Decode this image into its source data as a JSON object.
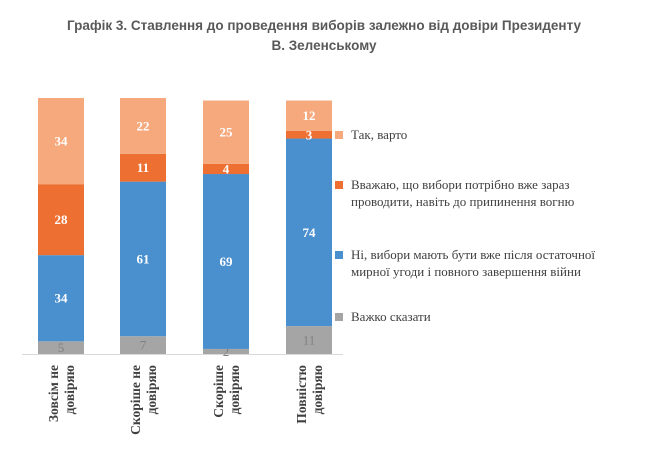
{
  "chart_data": {
    "type": "bar",
    "stacked": true,
    "title_line1": "Графік 3. Ставлення до проведення виборів залежно від довіри Президенту",
    "title_line2": "В. Зеленському",
    "categories": [
      [
        "Зовсім не",
        "довіряю"
      ],
      [
        "Скоріше не",
        "довіряю"
      ],
      [
        "Скоріше",
        "довіряю"
      ],
      [
        "Повністю",
        "довіряю"
      ]
    ],
    "series": [
      {
        "name": "Важко сказати",
        "color": "#a5a5a5",
        "label_color": "#808080",
        "values": [
          5,
          7,
          2,
          11
        ]
      },
      {
        "name": "Ні, вибори мають бути вже після остаточної мирної угоди і повного завершення війни",
        "color": "#4a8fce",
        "label_color": "#ffffff",
        "values": [
          34,
          61,
          69,
          74
        ]
      },
      {
        "name": "Вважаю, що вибори потрібно вже зараз проводити, навіть до припинення вогню",
        "color": "#ed7032",
        "label_color": "#ffffff",
        "values": [
          28,
          11,
          4,
          3
        ]
      },
      {
        "name": "Так, варто",
        "color": "#f5a97d",
        "label_color": "#ffffff",
        "values": [
          34,
          22,
          25,
          12
        ]
      }
    ],
    "legend_order": [
      3,
      2,
      1,
      0
    ],
    "ylim": [
      0,
      101
    ]
  }
}
